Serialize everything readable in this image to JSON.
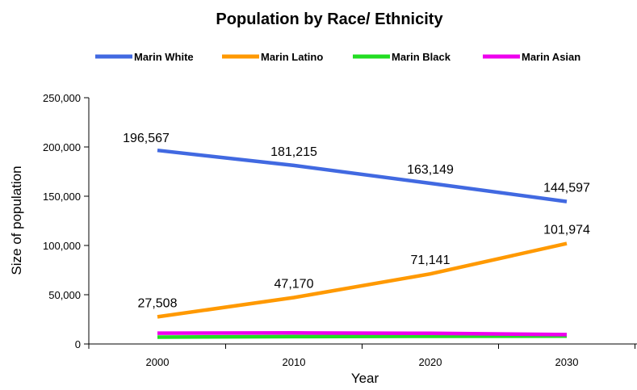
{
  "chart_data": {
    "type": "line",
    "title": "Population by Race/ Ethnicity",
    "xlabel": "Year",
    "ylabel": "Size of population",
    "categories": [
      "2000",
      "2010",
      "2020",
      "2030"
    ],
    "y_ticks": [
      "0",
      "50,000",
      "100,000",
      "150,000",
      "200,000",
      "250,000"
    ],
    "ylim": [
      0,
      250000
    ],
    "grid": false,
    "legend_position": "top",
    "series": [
      {
        "name": "Marin White",
        "color": "#4169e1",
        "values": [
          196567,
          181215,
          163149,
          144597
        ],
        "labels": [
          "196,567",
          "181,215",
          "163,149",
          "144,597"
        ]
      },
      {
        "name": "Marin Latino",
        "color": "#ff9900",
        "values": [
          27508,
          47170,
          71141,
          101974
        ],
        "labels": [
          "27,508",
          "47,170",
          "71,141",
          "101,974"
        ]
      },
      {
        "name": "Marin Black",
        "color": "#22dd22",
        "values": [
          7000,
          7500,
          7800,
          8000
        ],
        "labels": []
      },
      {
        "name": "Marin Asian",
        "color": "#ee00ee",
        "values": [
          11000,
          11200,
          10800,
          9500
        ],
        "labels": []
      }
    ]
  }
}
